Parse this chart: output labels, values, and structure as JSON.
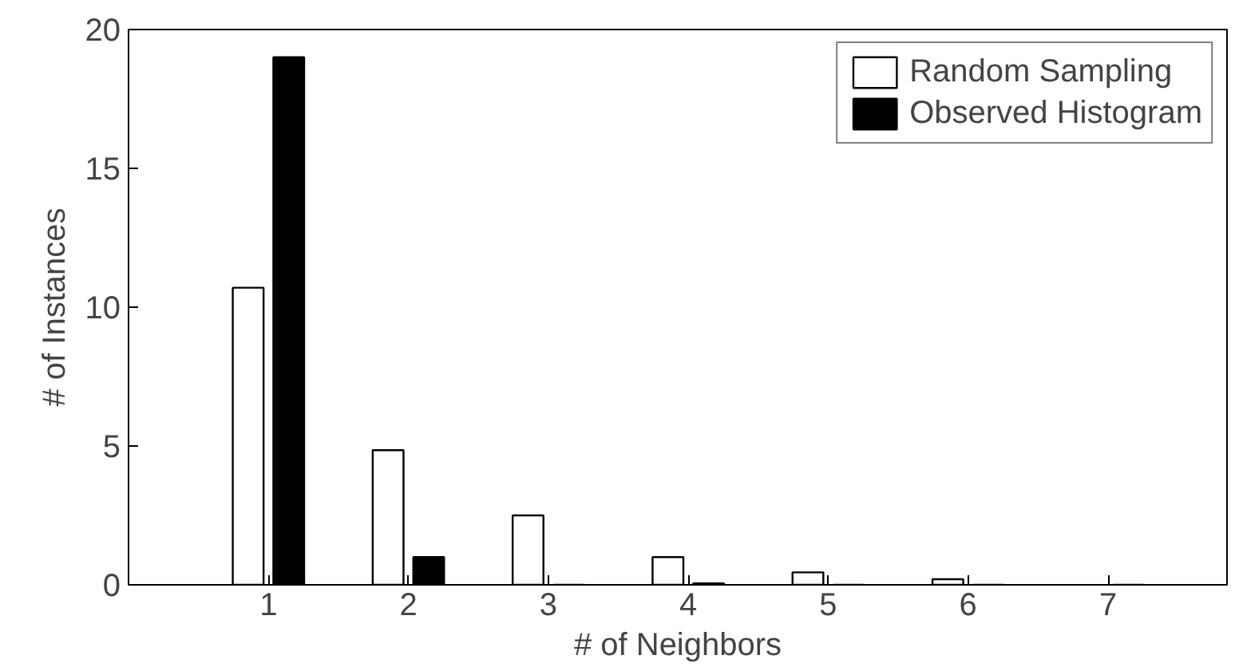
{
  "chart_data": {
    "type": "bar",
    "xlabel": "# of Neighbors",
    "ylabel": "# of Instances",
    "x": [
      1,
      2,
      3,
      4,
      5,
      6,
      7
    ],
    "series": [
      {
        "name": "Random Sampling",
        "color": "#ffffff",
        "values": [
          10.7,
          4.85,
          2.5,
          1.0,
          0.45,
          0.2,
          null
        ]
      },
      {
        "name": "Observed Histogram",
        "color": "#000000",
        "values": [
          19,
          1.0,
          0,
          0.05,
          0,
          0,
          0
        ]
      }
    ],
    "xlim": [
      0,
      7.85
    ],
    "xticks": [
      1,
      2,
      3,
      4,
      5,
      6,
      7
    ],
    "ylim": [
      0,
      20
    ],
    "yticks": [
      0,
      5,
      10,
      15,
      20
    ],
    "grid": false,
    "legend": "top right"
  }
}
